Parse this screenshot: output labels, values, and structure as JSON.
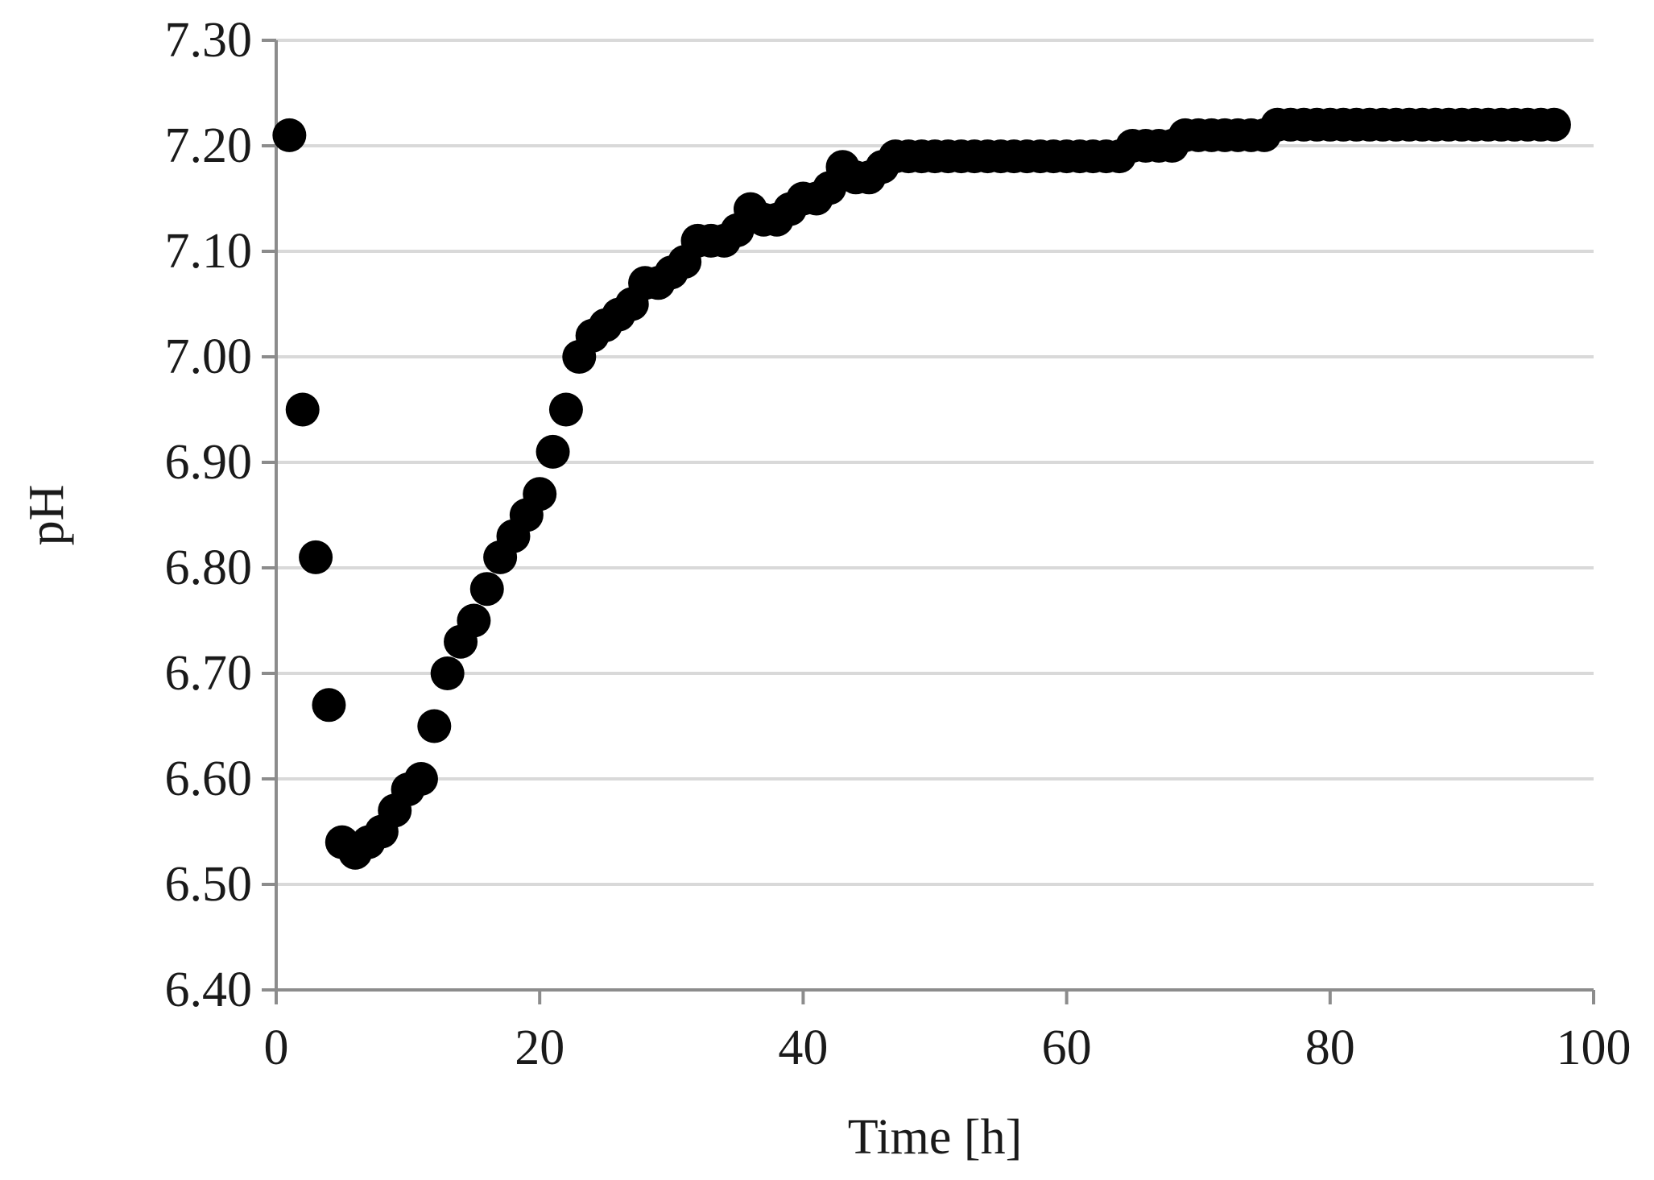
{
  "chart_data": {
    "type": "scatter",
    "xlabel": "Time [h]",
    "ylabel": "pH",
    "xlim": [
      0,
      100
    ],
    "ylim": [
      6.4,
      7.3
    ],
    "x_ticks": [
      0,
      20,
      40,
      60,
      80,
      100
    ],
    "y_ticks": [
      "6.40",
      "6.50",
      "6.60",
      "6.70",
      "6.80",
      "6.90",
      "7.00",
      "7.10",
      "7.20",
      "7.30"
    ],
    "grid": "horizontal",
    "legend": "none",
    "marker_color": "#000000",
    "gridline_color": "#d9d9d9",
    "axis_color": "#8c8c8c",
    "series": [
      {
        "x": [
          1,
          2,
          3,
          4,
          5,
          6,
          7,
          8,
          9,
          10,
          11,
          12,
          13,
          14,
          15,
          16,
          17,
          18,
          19,
          20,
          21,
          22,
          23,
          24,
          25,
          26,
          27,
          28,
          29,
          30,
          31,
          32,
          33,
          34,
          35,
          36,
          37,
          38,
          39,
          40,
          41,
          42,
          43,
          44,
          45,
          46,
          47,
          48,
          49,
          50,
          51,
          52,
          53,
          54,
          55,
          56,
          57,
          58,
          59,
          60,
          61,
          62,
          63,
          64,
          65,
          66,
          67,
          68,
          69,
          70,
          71,
          72,
          73,
          74,
          75,
          76,
          77,
          78,
          79,
          80,
          81,
          82,
          83,
          84,
          85,
          86,
          87,
          88,
          89,
          90,
          91,
          92,
          93,
          94,
          95,
          96,
          97
        ],
        "y": [
          7.21,
          6.95,
          6.81,
          6.67,
          6.54,
          6.53,
          6.54,
          6.55,
          6.57,
          6.59,
          6.6,
          6.65,
          6.7,
          6.73,
          6.75,
          6.78,
          6.81,
          6.83,
          6.85,
          6.87,
          6.91,
          6.95,
          7.0,
          7.02,
          7.03,
          7.04,
          7.05,
          7.07,
          7.07,
          7.08,
          7.09,
          7.11,
          7.11,
          7.11,
          7.12,
          7.14,
          7.13,
          7.13,
          7.14,
          7.15,
          7.15,
          7.16,
          7.18,
          7.17,
          7.17,
          7.18,
          7.19,
          7.19,
          7.19,
          7.19,
          7.19,
          7.19,
          7.19,
          7.19,
          7.19,
          7.19,
          7.19,
          7.19,
          7.19,
          7.19,
          7.19,
          7.19,
          7.19,
          7.19,
          7.2,
          7.2,
          7.2,
          7.2,
          7.21,
          7.21,
          7.21,
          7.21,
          7.21,
          7.21,
          7.21,
          7.22,
          7.22,
          7.22,
          7.22,
          7.22,
          7.22,
          7.22,
          7.22,
          7.22,
          7.22,
          7.22,
          7.22,
          7.22,
          7.22,
          7.22,
          7.22,
          7.22,
          7.22,
          7.22,
          7.22,
          7.22,
          7.22
        ]
      }
    ]
  }
}
